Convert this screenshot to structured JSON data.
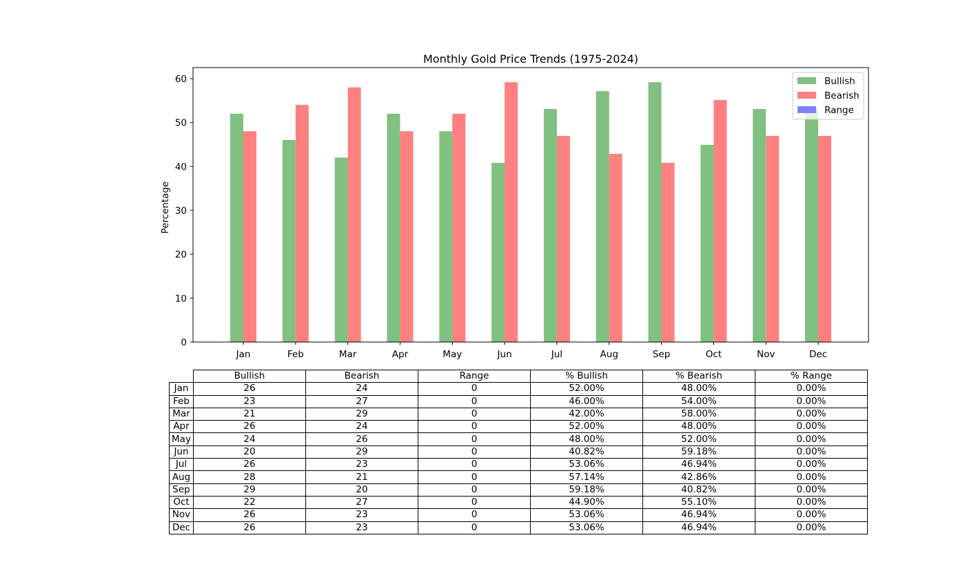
{
  "chart_data": {
    "type": "bar",
    "title": "Monthly Gold Price Trends (1975-2024)",
    "xlabel": "",
    "ylabel": "Percentage",
    "ylim": [
      0,
      62.5
    ],
    "yticks": [
      0,
      10,
      20,
      30,
      40,
      50,
      60
    ],
    "categories": [
      "Jan",
      "Feb",
      "Mar",
      "Apr",
      "May",
      "Jun",
      "Jul",
      "Aug",
      "Sep",
      "Oct",
      "Nov",
      "Dec"
    ],
    "series": [
      {
        "name": "Bullish",
        "color": "#80c080",
        "values": [
          52.0,
          46.0,
          42.0,
          52.0,
          48.0,
          40.82,
          53.06,
          57.14,
          59.18,
          44.9,
          53.06,
          53.06
        ]
      },
      {
        "name": "Bearish",
        "color": "#ff8080",
        "values": [
          48.0,
          54.0,
          58.0,
          48.0,
          52.0,
          59.18,
          46.94,
          42.86,
          40.82,
          55.1,
          46.94,
          46.94
        ]
      },
      {
        "name": "Range",
        "color": "#8080ff",
        "values": [
          0,
          0,
          0,
          0,
          0,
          0,
          0,
          0,
          0,
          0,
          0,
          0
        ]
      }
    ],
    "legend_position": "top-right",
    "grid": false
  },
  "table": {
    "columns": [
      "Bullish",
      "Bearish",
      "Range",
      "% Bullish",
      "% Bearish",
      "% Range"
    ],
    "rows": [
      {
        "label": "Jan",
        "cells": [
          "26",
          "24",
          "0",
          "52.00%",
          "48.00%",
          "0.00%"
        ]
      },
      {
        "label": "Feb",
        "cells": [
          "23",
          "27",
          "0",
          "46.00%",
          "54.00%",
          "0.00%"
        ]
      },
      {
        "label": "Mar",
        "cells": [
          "21",
          "29",
          "0",
          "42.00%",
          "58.00%",
          "0.00%"
        ]
      },
      {
        "label": "Apr",
        "cells": [
          "26",
          "24",
          "0",
          "52.00%",
          "48.00%",
          "0.00%"
        ]
      },
      {
        "label": "May",
        "cells": [
          "24",
          "26",
          "0",
          "48.00%",
          "52.00%",
          "0.00%"
        ]
      },
      {
        "label": "Jun",
        "cells": [
          "20",
          "29",
          "0",
          "40.82%",
          "59.18%",
          "0.00%"
        ]
      },
      {
        "label": "Jul",
        "cells": [
          "26",
          "23",
          "0",
          "53.06%",
          "46.94%",
          "0.00%"
        ]
      },
      {
        "label": "Aug",
        "cells": [
          "28",
          "21",
          "0",
          "57.14%",
          "42.86%",
          "0.00%"
        ]
      },
      {
        "label": "Sep",
        "cells": [
          "29",
          "20",
          "0",
          "59.18%",
          "40.82%",
          "0.00%"
        ]
      },
      {
        "label": "Oct",
        "cells": [
          "22",
          "27",
          "0",
          "44.90%",
          "55.10%",
          "0.00%"
        ]
      },
      {
        "label": "Nov",
        "cells": [
          "26",
          "23",
          "0",
          "53.06%",
          "46.94%",
          "0.00%"
        ]
      },
      {
        "label": "Dec",
        "cells": [
          "26",
          "23",
          "0",
          "53.06%",
          "46.94%",
          "0.00%"
        ]
      }
    ]
  }
}
